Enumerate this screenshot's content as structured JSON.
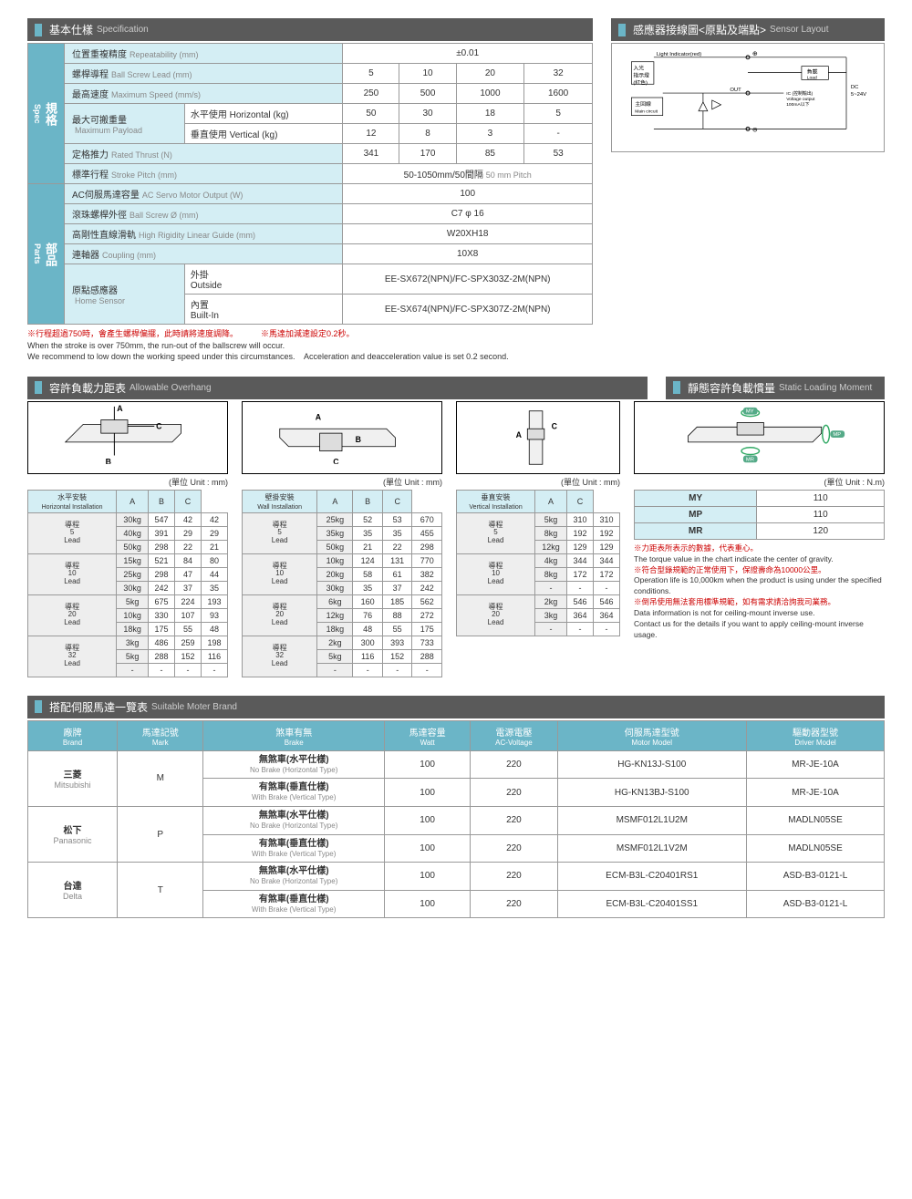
{
  "spec_header": {
    "cn": "基本仕樣",
    "en": "Specification"
  },
  "sensor_header": {
    "cn": "感應器接線圖<原點及端點>",
    "en": "Sensor Layout"
  },
  "spec_vh1": {
    "cn": "規格",
    "en": "Spec"
  },
  "spec_vh2": {
    "cn": "部品",
    "en": "Parts"
  },
  "spec": {
    "r1": {
      "l": "位置重複精度",
      "le": "Repeatability (mm)",
      "v": "±0.01"
    },
    "r2": {
      "l": "螺桿導程",
      "le": "Ball Screw Lead (mm)",
      "v1": "5",
      "v2": "10",
      "v3": "20",
      "v4": "32"
    },
    "r3": {
      "l": "最高速度",
      "le": "Maximum Speed (mm/s)",
      "v1": "250",
      "v2": "500",
      "v3": "1000",
      "v4": "1600"
    },
    "r4": {
      "l": "最大可搬重量",
      "le": "Maximum Payload",
      "s1": "水平使用",
      "s1e": "Horizontal (kg)",
      "s2": "垂直使用",
      "s2e": "Vertical (kg)",
      "h1": "50",
      "h2": "30",
      "h3": "18",
      "h4": "5",
      "v1": "12",
      "v2": "8",
      "v3": "3",
      "v4": "-"
    },
    "r5": {
      "l": "定格推力",
      "le": "Rated Thrust (N)",
      "v1": "341",
      "v2": "170",
      "v3": "85",
      "v4": "53"
    },
    "r6": {
      "l": "標準行程",
      "le": "Stroke Pitch (mm)",
      "v": "50-1050mm/50間隔",
      "ve": "50 mm Pitch"
    },
    "r7": {
      "l": "AC伺服馬達容量",
      "le": "AC Servo Motor Output (W)",
      "v": "100"
    },
    "r8": {
      "l": "滾珠螺桿外徑",
      "le": "Ball Screw Ø (mm)",
      "v": "C7 φ 16"
    },
    "r9": {
      "l": "高剛性直線滑軌",
      "le": "High Rigidity Linear Guide (mm)",
      "v": "W20XH18"
    },
    "r10": {
      "l": "連軸器",
      "le": "Coupling (mm)",
      "v": "10X8"
    },
    "r11": {
      "l": "原點感應器",
      "le": "Home Sensor",
      "s1": "外掛",
      "s1e": "Outside",
      "s2": "內置",
      "s2e": "Built-In",
      "v1": "EE-SX672(NPN)/FC-SPX303Z-2M(NPN)",
      "v2": "EE-SX674(NPN)/FC-SPX307Z-2M(NPN)"
    }
  },
  "note1_cn": "※行程超過750時，會產生螺桿偏擺，此時請將速度調降。",
  "note1_en": "When the stroke is over 750mm, the run-out of the ballscrew will occur.\nWe recommend to low down the working speed under this circumstances.",
  "note2_cn": "※馬達加減速設定0.2秒。",
  "note2_en": "Acceleration and deacceleration value is set 0.2 second.",
  "sensor_labels": {
    "light": "Light Indicator(red)",
    "light_cn": "入光\n指示燈\n(紅色)",
    "load": "負載",
    "load_en": "Load",
    "main": "主回線",
    "main_en": "Main\ncircuit",
    "out": "OUT",
    "ic": "IC (控制輸出)",
    "ic_en": "Voltage output\n100mA以下",
    "dc": "DC\n5~24V"
  },
  "overhang_header": {
    "cn": "容許負載力距表",
    "en": "Allowable Overhang"
  },
  "static_header": {
    "cn": "靜態容許負載慣量",
    "en": "Static Loading Moment"
  },
  "unit_mm": "(單位 Unit : mm)",
  "unit_nm": "(單位 Unit : N.m)",
  "oh1": {
    "title": "水平安裝",
    "title_en": "Horizontal Installation",
    "cols": [
      "A",
      "B",
      "C"
    ],
    "g1": {
      "lead": "導程\n5\nLead",
      "rows": [
        [
          "30kg",
          "547",
          "42",
          "42"
        ],
        [
          "40kg",
          "391",
          "29",
          "29"
        ],
        [
          "50kg",
          "298",
          "22",
          "21"
        ]
      ]
    },
    "g2": {
      "lead": "導程\n10\nLead",
      "rows": [
        [
          "15kg",
          "521",
          "84",
          "80"
        ],
        [
          "25kg",
          "298",
          "47",
          "44"
        ],
        [
          "30kg",
          "242",
          "37",
          "35"
        ]
      ]
    },
    "g3": {
      "lead": "導程\n20\nLead",
      "rows": [
        [
          "5kg",
          "675",
          "224",
          "193"
        ],
        [
          "10kg",
          "330",
          "107",
          "93"
        ],
        [
          "18kg",
          "175",
          "55",
          "48"
        ]
      ]
    },
    "g4": {
      "lead": "導程\n32\nLead",
      "rows": [
        [
          "3kg",
          "486",
          "259",
          "198"
        ],
        [
          "5kg",
          "288",
          "152",
          "116"
        ],
        [
          "-",
          "-",
          "-",
          "-"
        ]
      ]
    }
  },
  "oh2": {
    "title": "壁掛安裝",
    "title_en": "Wall Installation",
    "cols": [
      "A",
      "B",
      "C"
    ],
    "g1": {
      "lead": "導程\n5\nLead",
      "rows": [
        [
          "25kg",
          "52",
          "53",
          "670"
        ],
        [
          "35kg",
          "35",
          "35",
          "455"
        ],
        [
          "50kg",
          "21",
          "22",
          "298"
        ]
      ]
    },
    "g2": {
      "lead": "導程\n10\nLead",
      "rows": [
        [
          "10kg",
          "124",
          "131",
          "770"
        ],
        [
          "20kg",
          "58",
          "61",
          "382"
        ],
        [
          "30kg",
          "35",
          "37",
          "242"
        ]
      ]
    },
    "g3": {
      "lead": "導程\n20\nLead",
      "rows": [
        [
          "6kg",
          "160",
          "185",
          "562"
        ],
        [
          "12kg",
          "76",
          "88",
          "272"
        ],
        [
          "18kg",
          "48",
          "55",
          "175"
        ]
      ]
    },
    "g4": {
      "lead": "導程\n32\nLead",
      "rows": [
        [
          "2kg",
          "300",
          "393",
          "733"
        ],
        [
          "5kg",
          "116",
          "152",
          "288"
        ],
        [
          "-",
          "-",
          "-",
          "-"
        ]
      ]
    }
  },
  "oh3": {
    "title": "垂直安裝",
    "title_en": "Vertical Installation",
    "cols": [
      "A",
      "C"
    ],
    "g1": {
      "lead": "導程\n5\nLead",
      "rows": [
        [
          "5kg",
          "310",
          "310"
        ],
        [
          "8kg",
          "192",
          "192"
        ],
        [
          "12kg",
          "129",
          "129"
        ]
      ]
    },
    "g2": {
      "lead": "導程\n10\nLead",
      "rows": [
        [
          "4kg",
          "344",
          "344"
        ],
        [
          "8kg",
          "172",
          "172"
        ],
        [
          "-",
          "-",
          "-"
        ]
      ]
    },
    "g3": {
      "lead": "導程\n20\nLead",
      "rows": [
        [
          "2kg",
          "546",
          "546"
        ],
        [
          "3kg",
          "364",
          "364"
        ],
        [
          "-",
          "-",
          "-"
        ]
      ]
    }
  },
  "static": {
    "rows": [
      [
        "MY",
        "110"
      ],
      [
        "MP",
        "110"
      ],
      [
        "MR",
        "120"
      ]
    ]
  },
  "static_notes": {
    "n1_cn": "※力距表所表示的數據，代表重心。",
    "n1_en": "The torque value in the chart indicate the center of gravity.",
    "n2_cn": "※符合型錄規範的正常使用下，保證壽命為10000公里。",
    "n2_en": "Operation life is 10,000km when the product is using under the specified conditions.",
    "n3_cn": "※倒吊使用無法套用標準規範，如有需求請洽詢我司業務。",
    "n3_en": "Data information is not for ceiling-mount inverse use.\nContact us for the details if you want to apply ceiling-mount inverse usage."
  },
  "motor_header": {
    "cn": "搭配伺服馬達一覽表",
    "en": "Suitable Moter Brand"
  },
  "motor_cols": [
    {
      "cn": "廠牌",
      "en": "Brand"
    },
    {
      "cn": "馬達記號",
      "en": "Mark"
    },
    {
      "cn": "煞車有無",
      "en": "Brake"
    },
    {
      "cn": "馬達容量",
      "en": "Watt"
    },
    {
      "cn": "電源電壓",
      "en": "AC-Voltage"
    },
    {
      "cn": "伺服馬達型號",
      "en": "Motor Model"
    },
    {
      "cn": "驅動器型號",
      "en": "Driver Model"
    }
  ],
  "brake_nb": {
    "cn": "無煞車(水平仕樣)",
    "en": "No Brake (Horizontal Type)"
  },
  "brake_wb": {
    "cn": "有煞車(垂直仕樣)",
    "en": "With Brake (Vertical Type)"
  },
  "motors": [
    {
      "brand": "三菱",
      "brand_en": "Mitsubishi",
      "mark": "M",
      "r": [
        [
          "100",
          "220",
          "HG-KN13J-S100",
          "MR-JE-10A"
        ],
        [
          "100",
          "220",
          "HG-KN13BJ-S100",
          "MR-JE-10A"
        ]
      ]
    },
    {
      "brand": "松下",
      "brand_en": "Panasonic",
      "mark": "P",
      "r": [
        [
          "100",
          "220",
          "MSMF012L1U2M",
          "MADLN05SE"
        ],
        [
          "100",
          "220",
          "MSMF012L1V2M",
          "MADLN05SE"
        ]
      ]
    },
    {
      "brand": "台達",
      "brand_en": "Delta",
      "mark": "T",
      "r": [
        [
          "100",
          "220",
          "ECM-B3L-C20401RS1",
          "ASD-B3-0121-L"
        ],
        [
          "100",
          "220",
          "ECM-B3L-C20401SS1",
          "ASD-B3-0121-L"
        ]
      ]
    }
  ]
}
